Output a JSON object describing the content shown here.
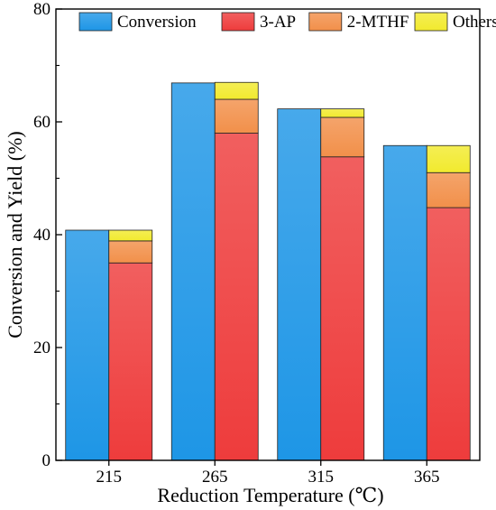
{
  "chart_data": {
    "type": "bar",
    "categories": [
      "215",
      "265",
      "315",
      "365"
    ],
    "series": [
      {
        "name": "Conversion",
        "values": [
          40.8,
          66.9,
          62.3,
          55.8
        ],
        "color": "#1e96e6",
        "stack": "conversion"
      },
      {
        "name": "3-AP",
        "values": [
          35.0,
          58.0,
          53.8,
          44.8
        ],
        "color": "#ee3c3c",
        "stack": "yield"
      },
      {
        "name": "2-MTHF",
        "values": [
          3.9,
          6.0,
          7.0,
          6.2
        ],
        "color": "#f2904a",
        "stack": "yield"
      },
      {
        "name": "Others",
        "values": [
          1.9,
          3.0,
          1.5,
          4.8
        ],
        "color": "#f2ea2e",
        "stack": "yield"
      }
    ],
    "xlabel": "Reduction Temperature (℃)",
    "ylabel": "Conversion and Yield (%)",
    "ylim": [
      0,
      80
    ],
    "yticks": [
      "0",
      "20",
      "40",
      "60",
      "80"
    ],
    "legend": "top, inside plot",
    "grid": false
  }
}
